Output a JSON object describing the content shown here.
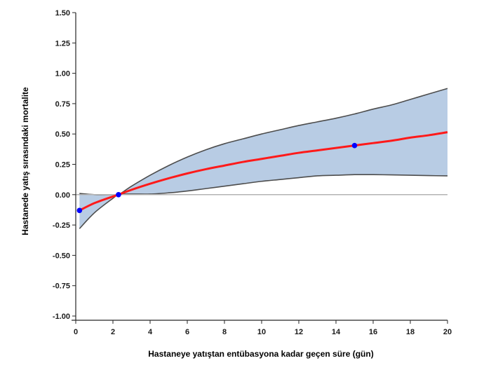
{
  "chart_data": {
    "type": "line",
    "title": "",
    "xlabel": "Hastaneye yatıştan entübasyona kadar geçen süre (gün)",
    "ylabel": "Hastanede yatış sırasındaki mortalite",
    "xlim": [
      0,
      20
    ],
    "ylim": [
      -1.0,
      1.5
    ],
    "x_ticks": [
      0,
      2,
      4,
      6,
      8,
      10,
      12,
      14,
      16,
      18,
      20
    ],
    "x_tick_labels": [
      "0",
      "2",
      "4",
      "6",
      "8",
      "10",
      "12",
      "14",
      "16",
      "18",
      "20"
    ],
    "y_ticks": [
      1.5,
      1.25,
      1.0,
      0.75,
      0.5,
      0.25,
      0.0,
      -0.25,
      -0.5,
      -0.75,
      -1.0
    ],
    "y_tick_labels": [
      "1.50",
      "1.25",
      "1.00",
      "0.75",
      "0.50",
      "0.25",
      "0.00",
      "-0.25",
      "-0.50",
      "-0.75",
      "-1.00"
    ],
    "reference_line_y": 0.0,
    "grid": false,
    "colors": {
      "fit_line": "#ff1a1a",
      "band_fill": "#b8cce4",
      "band_edge": "#4d4d4d",
      "points": "#0000ff",
      "reference_line": "#b3b3b3"
    },
    "series": [
      {
        "kind": "fit",
        "x": [
          0.2,
          1,
          2,
          2.3,
          3,
          4,
          5,
          6,
          7,
          8,
          9,
          10,
          11,
          12,
          13,
          14,
          15,
          16,
          17,
          18,
          19,
          20
        ],
        "values": [
          -0.13,
          -0.07,
          -0.015,
          0.0,
          0.04,
          0.09,
          0.135,
          0.175,
          0.21,
          0.24,
          0.27,
          0.295,
          0.32,
          0.345,
          0.365,
          0.385,
          0.405,
          0.425,
          0.445,
          0.47,
          0.49,
          0.515
        ]
      },
      {
        "kind": "ci-upper",
        "x": [
          0.2,
          1,
          2,
          2.3,
          3,
          4,
          5,
          6,
          7,
          8,
          9,
          10,
          11,
          12,
          13,
          14,
          15,
          16,
          17,
          18,
          19,
          20
        ],
        "values": [
          0.01,
          0.0,
          0.0,
          0.0,
          0.07,
          0.16,
          0.24,
          0.31,
          0.37,
          0.42,
          0.46,
          0.5,
          0.535,
          0.57,
          0.6,
          0.63,
          0.665,
          0.705,
          0.74,
          0.785,
          0.83,
          0.875
        ]
      },
      {
        "kind": "ci-lower",
        "x": [
          0.2,
          1,
          2,
          2.3,
          3,
          4,
          5,
          6,
          7,
          8,
          9,
          10,
          11,
          12,
          13,
          14,
          15,
          16,
          17,
          18,
          19,
          20
        ],
        "values": [
          -0.28,
          -0.15,
          -0.03,
          0.0,
          0.005,
          0.005,
          0.015,
          0.03,
          0.05,
          0.07,
          0.09,
          0.11,
          0.125,
          0.14,
          0.155,
          0.16,
          0.165,
          0.165,
          0.163,
          0.16,
          0.157,
          0.155
        ]
      },
      {
        "kind": "points",
        "x": [
          0.2,
          2.3,
          15
        ],
        "values": [
          -0.13,
          0.0,
          0.405
        ]
      }
    ]
  }
}
